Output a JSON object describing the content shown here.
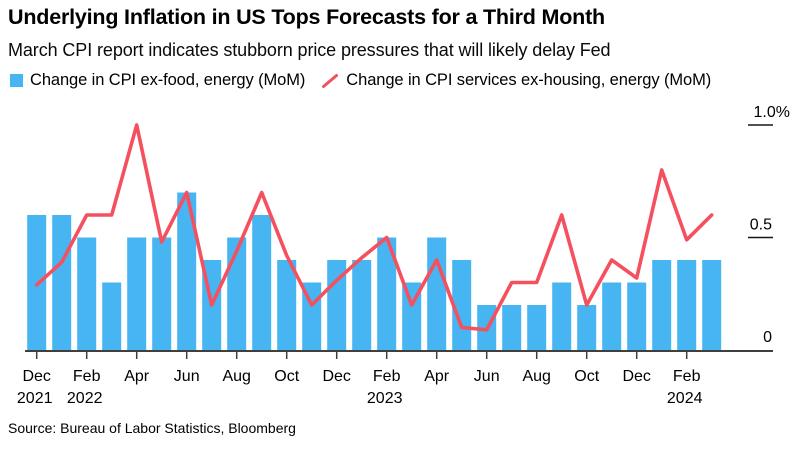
{
  "header": {
    "title": "Underlying Inflation in US Tops Forecasts for a Third Month",
    "subtitle": "March CPI report indicates stubborn price pressures that will likely delay Fed"
  },
  "legend": {
    "items": [
      {
        "label": "Change in CPI ex-food, energy (MoM)",
        "marker": "square",
        "color": "#47b5f2"
      },
      {
        "label": "Change in CPI services ex-housing, energy (MoM)",
        "marker": "slash",
        "color": "#f4505e"
      }
    ]
  },
  "chart_data": {
    "type": "bar",
    "title": "Underlying Inflation in US Tops Forecasts for a Third Month",
    "x": [
      "Dec 2021",
      "Jan 2022",
      "Feb 2022",
      "Mar 2022",
      "Apr 2022",
      "May 2022",
      "Jun 2022",
      "Jul 2022",
      "Aug 2022",
      "Sep 2022",
      "Oct 2022",
      "Nov 2022",
      "Dec 2022",
      "Jan 2023",
      "Feb 2023",
      "Mar 2023",
      "Apr 2023",
      "May 2023",
      "Jun 2023",
      "Jul 2023",
      "Aug 2023",
      "Sep 2023",
      "Oct 2023",
      "Nov 2023",
      "Dec 2023",
      "Jan 2024",
      "Feb 2024",
      "Mar 2024"
    ],
    "series": [
      {
        "name": "Change in CPI ex-food, energy (MoM)",
        "type": "bar",
        "color": "#47b5f2",
        "values": [
          0.6,
          0.6,
          0.5,
          0.3,
          0.5,
          0.5,
          0.7,
          0.4,
          0.5,
          0.6,
          0.4,
          0.3,
          0.4,
          0.4,
          0.5,
          0.3,
          0.5,
          0.4,
          0.2,
          0.2,
          0.2,
          0.3,
          0.2,
          0.3,
          0.3,
          0.4,
          0.4,
          0.4
        ]
      },
      {
        "name": "Change in CPI services ex-housing, energy (MoM)",
        "type": "line",
        "color": "#f4505e",
        "values": [
          0.29,
          0.39,
          0.6,
          0.6,
          1.0,
          0.48,
          0.7,
          0.2,
          0.44,
          0.7,
          0.42,
          0.2,
          0.31,
          0.41,
          0.5,
          0.2,
          0.4,
          0.1,
          0.09,
          0.3,
          0.3,
          0.6,
          0.2,
          0.4,
          0.32,
          0.8,
          0.49,
          0.6
        ]
      }
    ],
    "ylim": [
      0,
      1.0
    ],
    "yticks": [
      {
        "value": 1.0,
        "label": "1.0%"
      },
      {
        "value": 0.5,
        "label": "0.5"
      },
      {
        "value": 0.0,
        "label": "0"
      }
    ],
    "xticks": [
      {
        "index": 0,
        "label": "Dec",
        "year": "2021"
      },
      {
        "index": 2,
        "label": "Feb",
        "year": "2022"
      },
      {
        "index": 4,
        "label": "Apr"
      },
      {
        "index": 6,
        "label": "Jun"
      },
      {
        "index": 8,
        "label": "Aug"
      },
      {
        "index": 10,
        "label": "Oct"
      },
      {
        "index": 12,
        "label": "Dec"
      },
      {
        "index": 14,
        "label": "Feb",
        "year": "2023"
      },
      {
        "index": 16,
        "label": "Apr"
      },
      {
        "index": 18,
        "label": "Jun"
      },
      {
        "index": 20,
        "label": "Aug"
      },
      {
        "index": 22,
        "label": "Oct"
      },
      {
        "index": 24,
        "label": "Dec"
      },
      {
        "index": 26,
        "label": "Feb",
        "year": "2024"
      }
    ],
    "grid": false,
    "legend_position": "top"
  },
  "footer": {
    "source": "Source: Bureau of Labor Statistics, Bloomberg"
  }
}
